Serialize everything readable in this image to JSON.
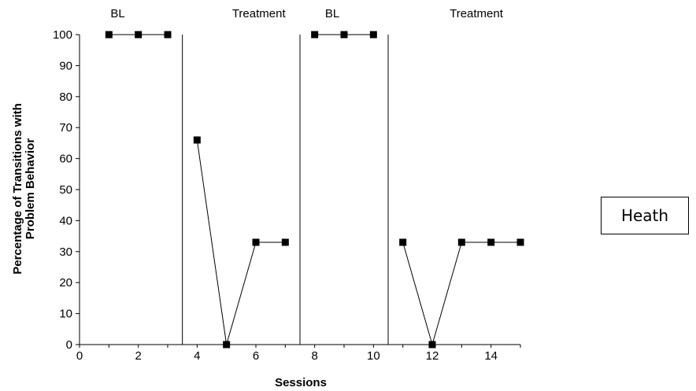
{
  "participant_label": "Heath",
  "chart_data": {
    "type": "line",
    "title": "",
    "xlabel": "Sessions",
    "ylabel_lines": [
      "Percentage of Transitions with",
      "Problem Behavior"
    ],
    "xlim": [
      0,
      15
    ],
    "ylim": [
      0,
      100
    ],
    "x_ticks": [
      0,
      2,
      4,
      6,
      8,
      10,
      12,
      14
    ],
    "y_ticks": [
      0,
      10,
      20,
      30,
      40,
      50,
      60,
      70,
      80,
      90,
      100
    ],
    "grid": false,
    "legend": "none",
    "marker": "square",
    "line_color": "#000000",
    "phase_lines": [
      3.5,
      7.5,
      10.5
    ],
    "phases": [
      {
        "label": "BL",
        "x": 1.3
      },
      {
        "label": "Treatment",
        "x": 6.1
      },
      {
        "label": "BL",
        "x": 8.6
      },
      {
        "label": "Treatment",
        "x": 13.5
      }
    ],
    "segments": [
      {
        "phase": "BL",
        "points": [
          [
            1,
            100
          ],
          [
            2,
            100
          ],
          [
            3,
            100
          ]
        ]
      },
      {
        "phase": "Treatment",
        "points": [
          [
            4,
            66
          ],
          [
            5,
            0
          ],
          [
            6,
            33
          ],
          [
            7,
            33
          ]
        ]
      },
      {
        "phase": "BL",
        "points": [
          [
            8,
            100
          ],
          [
            9,
            100
          ],
          [
            10,
            100
          ]
        ]
      },
      {
        "phase": "Treatment",
        "points": [
          [
            11,
            33
          ],
          [
            12,
            0
          ],
          [
            13,
            33
          ],
          [
            14,
            33
          ],
          [
            15,
            33
          ]
        ]
      }
    ]
  }
}
